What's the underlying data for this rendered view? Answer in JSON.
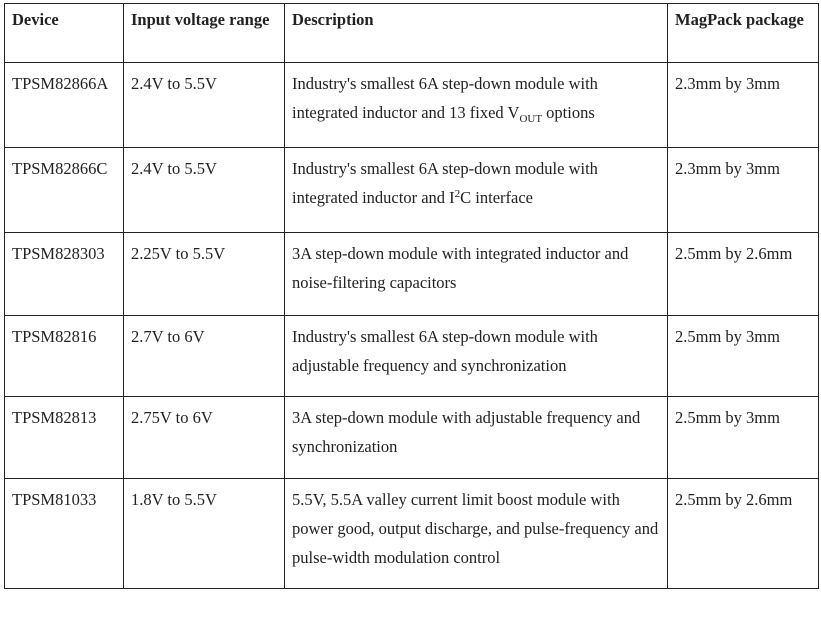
{
  "table": {
    "headers": [
      "Device",
      "Input voltage range",
      "Description",
      "MagPack package"
    ],
    "rows": [
      {
        "device": "TPSM82866A",
        "voltage": "2.4V to 5.5V",
        "description": [
          {
            "t": "Industry's smallest 6A step-down module with integrated inductor and 13 fixed V"
          },
          {
            "sub": "OUT"
          },
          {
            "t": " options"
          }
        ],
        "package": "2.3mm by 3mm"
      },
      {
        "device": "TPSM82866C",
        "voltage": "2.4V to 5.5V",
        "description": [
          {
            "t": "Industry's smallest 6A step-down module with integrated inductor and I"
          },
          {
            "sup": "2"
          },
          {
            "t": "C interface"
          }
        ],
        "package": "2.3mm by 3mm"
      },
      {
        "device": "TPSM828303",
        "voltage": "2.25V to 5.5V",
        "description": [
          {
            "t": "3A step-down module with integrated inductor and noise-filtering capacitors"
          }
        ],
        "package": "2.5mm by 2.6mm"
      },
      {
        "device": "TPSM82816",
        "voltage": "2.7V to 6V",
        "description": [
          {
            "t": "Industry's smallest 6A step-down module with adjustable frequency and synchronization"
          }
        ],
        "package": "2.5mm by 3mm"
      },
      {
        "device": "TPSM82813",
        "voltage": "2.75V to 6V",
        "description": [
          {
            "t": "3A step-down module with adjustable frequency and synchronization"
          }
        ],
        "package": "2.5mm by 3mm"
      },
      {
        "device": "TPSM81033",
        "voltage": "1.8V to 5.5V",
        "description": [
          {
            "t": "5.5V, 5.5A valley current limit boost module with power good, output discharge, and pulse-frequency and pulse-width modulation control"
          }
        ],
        "package": "2.5mm by 2.6mm"
      }
    ]
  }
}
